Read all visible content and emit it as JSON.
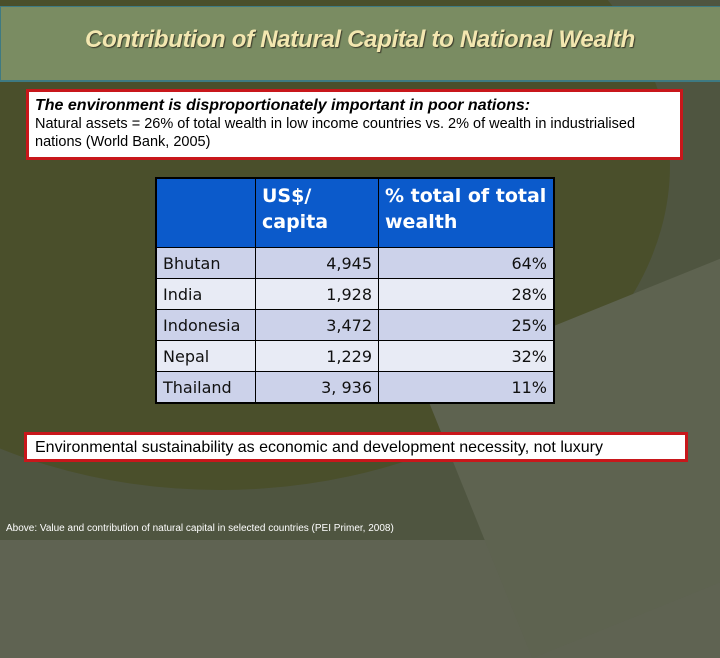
{
  "slide": {
    "title": "Contribution of Natural Capital to National Wealth",
    "callout_top": {
      "lead": "The environment is disproportionately important in poor nations:",
      "body": "Natural assets = 26% of total wealth in low income countries vs. 2% of wealth in industrialised nations (World Bank, 2005)"
    },
    "callout_bottom": "Environmental sustainability as economic and development necessity, not luxury",
    "caption": "Above: Value and contribution of natural capital in selected countries (PEI Primer, 2008)",
    "colors": {
      "title_text": "#f3e7b0",
      "title_bar": "#7a8c62",
      "callout_border": "#c8171b",
      "table_header": "#0b5acb",
      "row_odd": "#ccd2ea",
      "row_even": "#e8ebf5",
      "background": "#4a4f2b"
    }
  },
  "table": {
    "headers": [
      "",
      "US$/ capita",
      "% total  of total wealth"
    ],
    "rows": [
      {
        "country": "Bhutan",
        "usd_per_capita": "4,945",
        "pct_total_wealth": "64%"
      },
      {
        "country": "India",
        "usd_per_capita": "1,928",
        "pct_total_wealth": "28%"
      },
      {
        "country": "Indonesia",
        "usd_per_capita": "3,472",
        "pct_total_wealth": "25%"
      },
      {
        "country": "Nepal",
        "usd_per_capita": "1,229",
        "pct_total_wealth": "32%"
      },
      {
        "country": "Thailand",
        "usd_per_capita": "3, 936",
        "pct_total_wealth": "11%"
      }
    ]
  }
}
